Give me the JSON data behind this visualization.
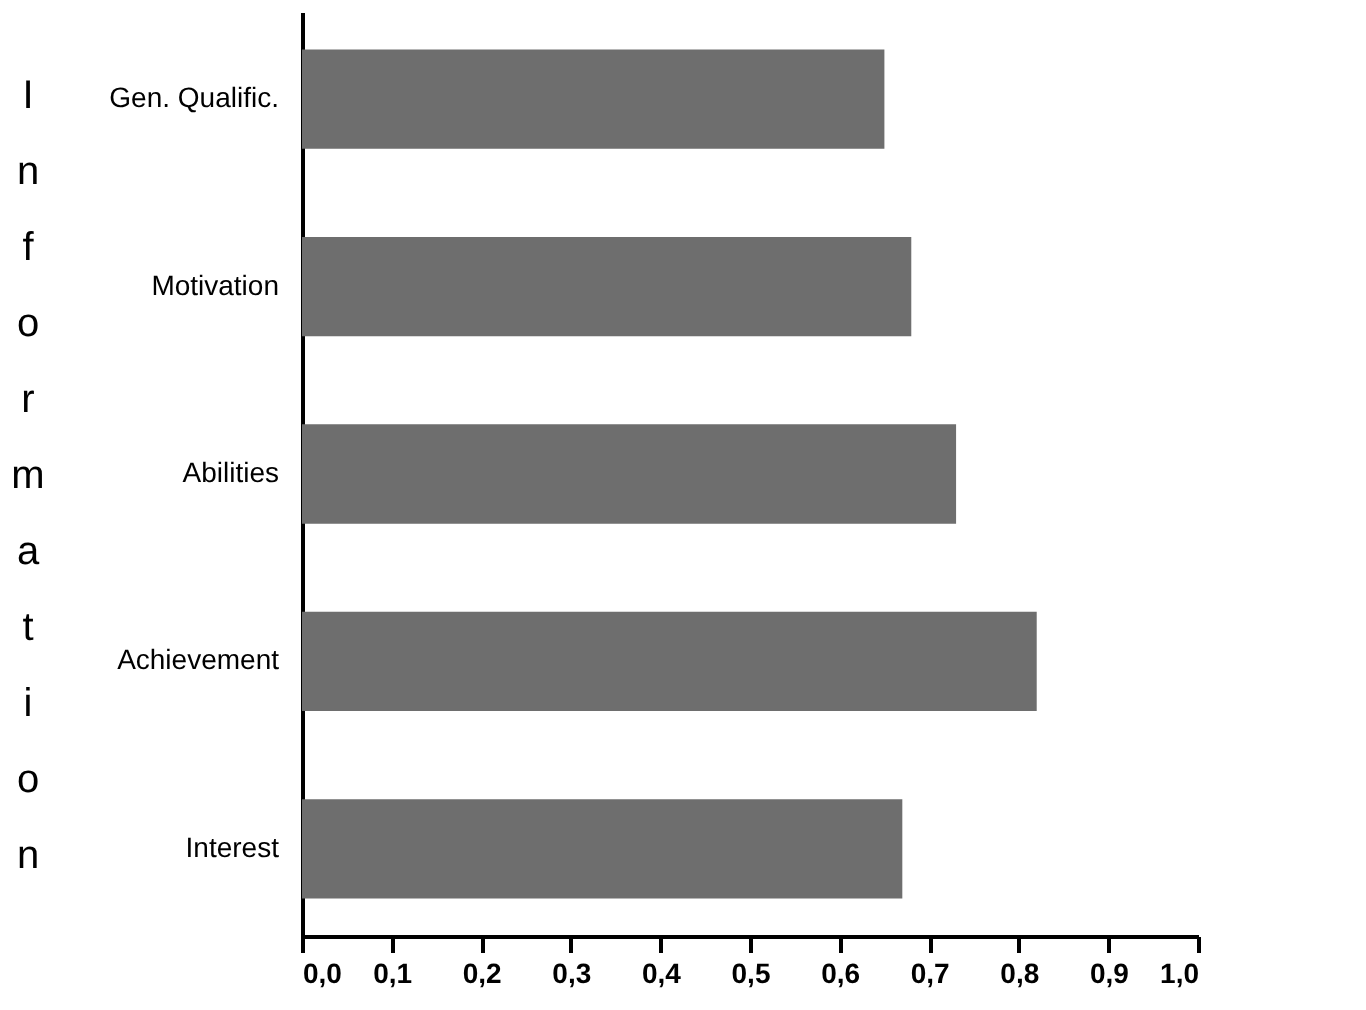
{
  "chart_data": {
    "type": "bar",
    "orientation": "horizontal",
    "ylabel": "Information",
    "categories": [
      "Gen. Qualific.",
      "Motivation",
      "Abilities",
      "Achievement",
      "Interest"
    ],
    "values": [
      0.65,
      0.68,
      0.73,
      0.82,
      0.67
    ],
    "color": "#6e6e6e",
    "xlim": [
      0,
      1
    ],
    "xticks": [
      {
        "value": 0,
        "label": "0,0"
      },
      {
        "value": 0.1,
        "label": "0,1"
      },
      {
        "value": 0.2,
        "label": "0,2"
      },
      {
        "value": 0.3,
        "label": "0,3"
      },
      {
        "value": 0.4,
        "label": "0,4"
      },
      {
        "value": 0.5,
        "label": "0,5"
      },
      {
        "value": 0.6,
        "label": "0,6"
      },
      {
        "value": 0.7,
        "label": "0,7"
      },
      {
        "value": 0.8,
        "label": "0,8"
      },
      {
        "value": 0.9,
        "label": "0,9"
      },
      {
        "value": 1,
        "label": "1,0"
      }
    ],
    "grid": false
  }
}
